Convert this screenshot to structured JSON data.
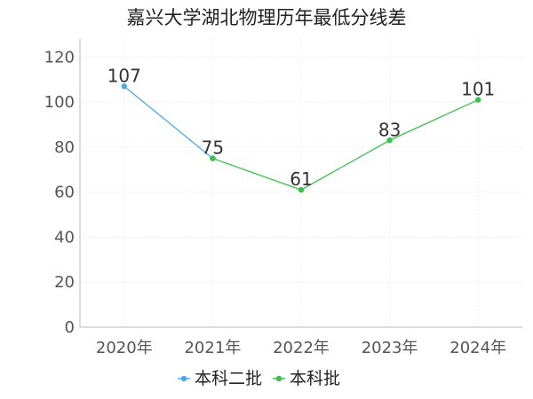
{
  "chart_data": {
    "type": "line",
    "title": "嘉兴大学湖北物理历年最低分线差",
    "xlabel": "",
    "ylabel": "",
    "categories": [
      "2020年",
      "2021年",
      "2022年",
      "2023年",
      "2024年"
    ],
    "ylim": [
      0,
      128
    ],
    "yticks": [
      0,
      20,
      40,
      60,
      80,
      100,
      120
    ],
    "grid": true,
    "legend": "bottom-center",
    "series": [
      {
        "name": "本科二批",
        "color": "#4da6f0",
        "values": [
          107,
          75,
          null,
          null,
          null
        ]
      },
      {
        "name": "本科批",
        "color": "#3cc04a",
        "values": [
          null,
          75,
          61,
          83,
          101
        ]
      }
    ],
    "data_labels": [
      {
        "category": "2020年",
        "value": 107,
        "text": "107"
      },
      {
        "category": "2021年",
        "value": 75,
        "text": "75"
      },
      {
        "category": "2022年",
        "value": 61,
        "text": "61"
      },
      {
        "category": "2023年",
        "value": 83,
        "text": "83"
      },
      {
        "category": "2024年",
        "value": 101,
        "text": "101"
      }
    ]
  }
}
